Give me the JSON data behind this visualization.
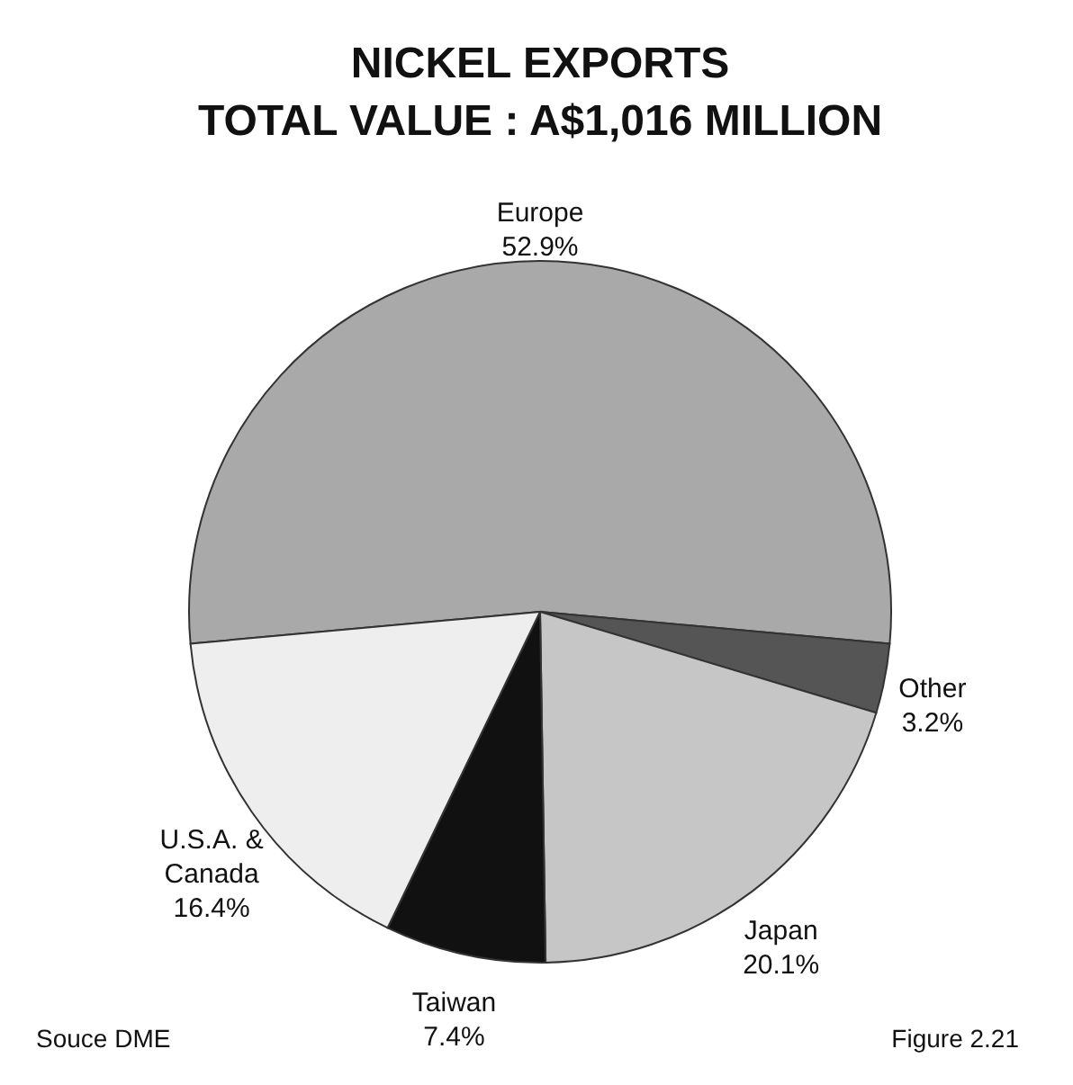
{
  "chart_data": {
    "type": "pie",
    "title": "NICKEL EXPORTS\nTOTAL VALUE : A$1,016 MILLION",
    "categories": [
      "Europe",
      "Other",
      "Japan",
      "Taiwan",
      "U.S.A. &\nCanada"
    ],
    "values": [
      52.9,
      3.2,
      20.1,
      7.4,
      16.4
    ],
    "value_labels": [
      "52.9%",
      "3.2%",
      "20.1%",
      "7.4%",
      "16.4%"
    ],
    "colors": [
      "#a9a9a9",
      "#555555",
      "#c6c6c6",
      "#111111",
      "#eeeeee"
    ],
    "annotations": [
      "Souce DME",
      "Figure 2.21"
    ]
  }
}
